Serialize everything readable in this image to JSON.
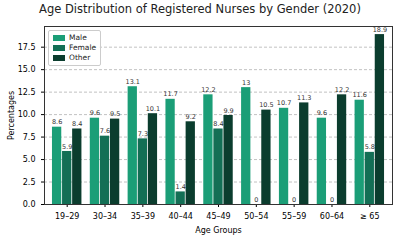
{
  "chart_data": {
    "type": "bar",
    "title": "Age Distribution of Registered Nurses by Gender (2020)",
    "x_label": "Age Groups",
    "y_label": "Percentages",
    "categories": [
      "19–29",
      "30–34",
      "35–39",
      "40–44",
      "45–49",
      "50–54",
      "55–59",
      "60–64",
      "≥ 65"
    ],
    "series": [
      {
        "name": "Male",
        "color": "#1b9e77",
        "values": [
          8.6,
          9.6,
          13.1,
          11.7,
          12.2,
          13.0,
          10.7,
          9.6,
          11.6
        ]
      },
      {
        "name": "Female",
        "color": "#136f55",
        "values": [
          5.9,
          7.6,
          7.3,
          1.4,
          8.4,
          0.0,
          0.0,
          0.0,
          5.8
        ]
      },
      {
        "name": "Other",
        "color": "#0b3d2e",
        "values": [
          8.4,
          9.5,
          10.1,
          9.2,
          9.9,
          10.5,
          11.3,
          12.2,
          18.9
        ]
      }
    ],
    "ylim": [
      0,
      19.8
    ],
    "yticks": [
      {
        "value": 0,
        "label": "0.0"
      },
      {
        "value": 2.5,
        "label": "2.5"
      },
      {
        "value": 5,
        "label": "5.0"
      },
      {
        "value": 7.5,
        "label": "7.5"
      },
      {
        "value": 10,
        "label": "10.0"
      },
      {
        "value": 12.5,
        "label": "12.5"
      },
      {
        "value": 15,
        "label": "15.0"
      },
      {
        "value": 17.5,
        "label": "17.5"
      }
    ],
    "grid": true,
    "legend": "upper left",
    "data_labels": true
  }
}
